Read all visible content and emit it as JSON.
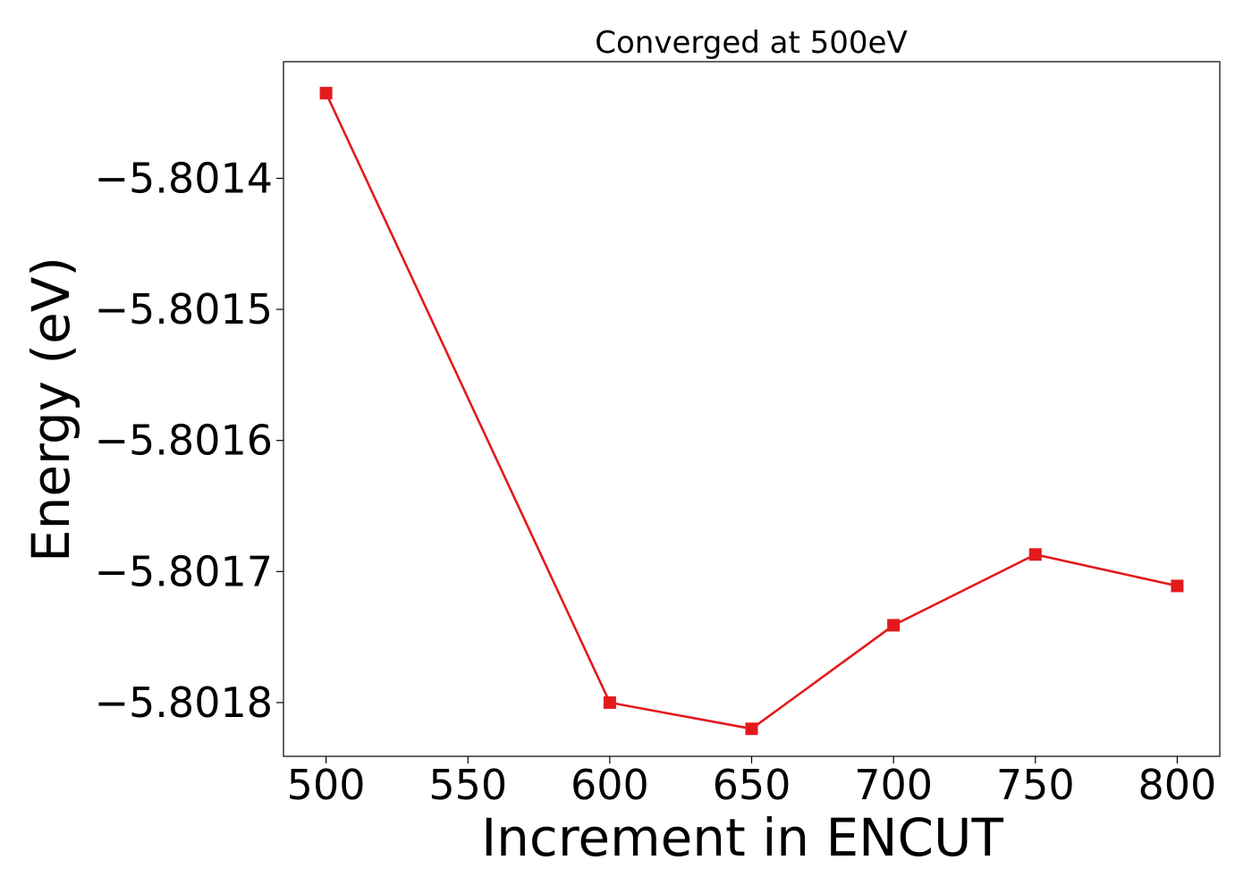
{
  "chart_data": {
    "type": "line",
    "title": "Converged at 500eV",
    "xlabel": "Increment in ENCUT",
    "ylabel": "Energy (eV)",
    "x": [
      500,
      600,
      650,
      700,
      750,
      800
    ],
    "series": [
      {
        "values": [
          -5.801335,
          -5.8018,
          -5.80182,
          -5.801741,
          -5.801687,
          -5.801711
        ],
        "color": "#e31a1c",
        "marker": "square"
      }
    ],
    "xlim": [
      485,
      815
    ],
    "ylim": [
      -5.801841,
      -5.801311
    ],
    "xticks": [
      500,
      550,
      600,
      650,
      700,
      750,
      800
    ],
    "yticks": [
      -5.8014,
      -5.8015,
      -5.8016,
      -5.8017,
      -5.8018
    ],
    "ytick_labels": [
      "−5.8014",
      "−5.8015",
      "−5.8016",
      "−5.8017",
      "−5.8018"
    ],
    "grid": false,
    "legend": "none"
  }
}
